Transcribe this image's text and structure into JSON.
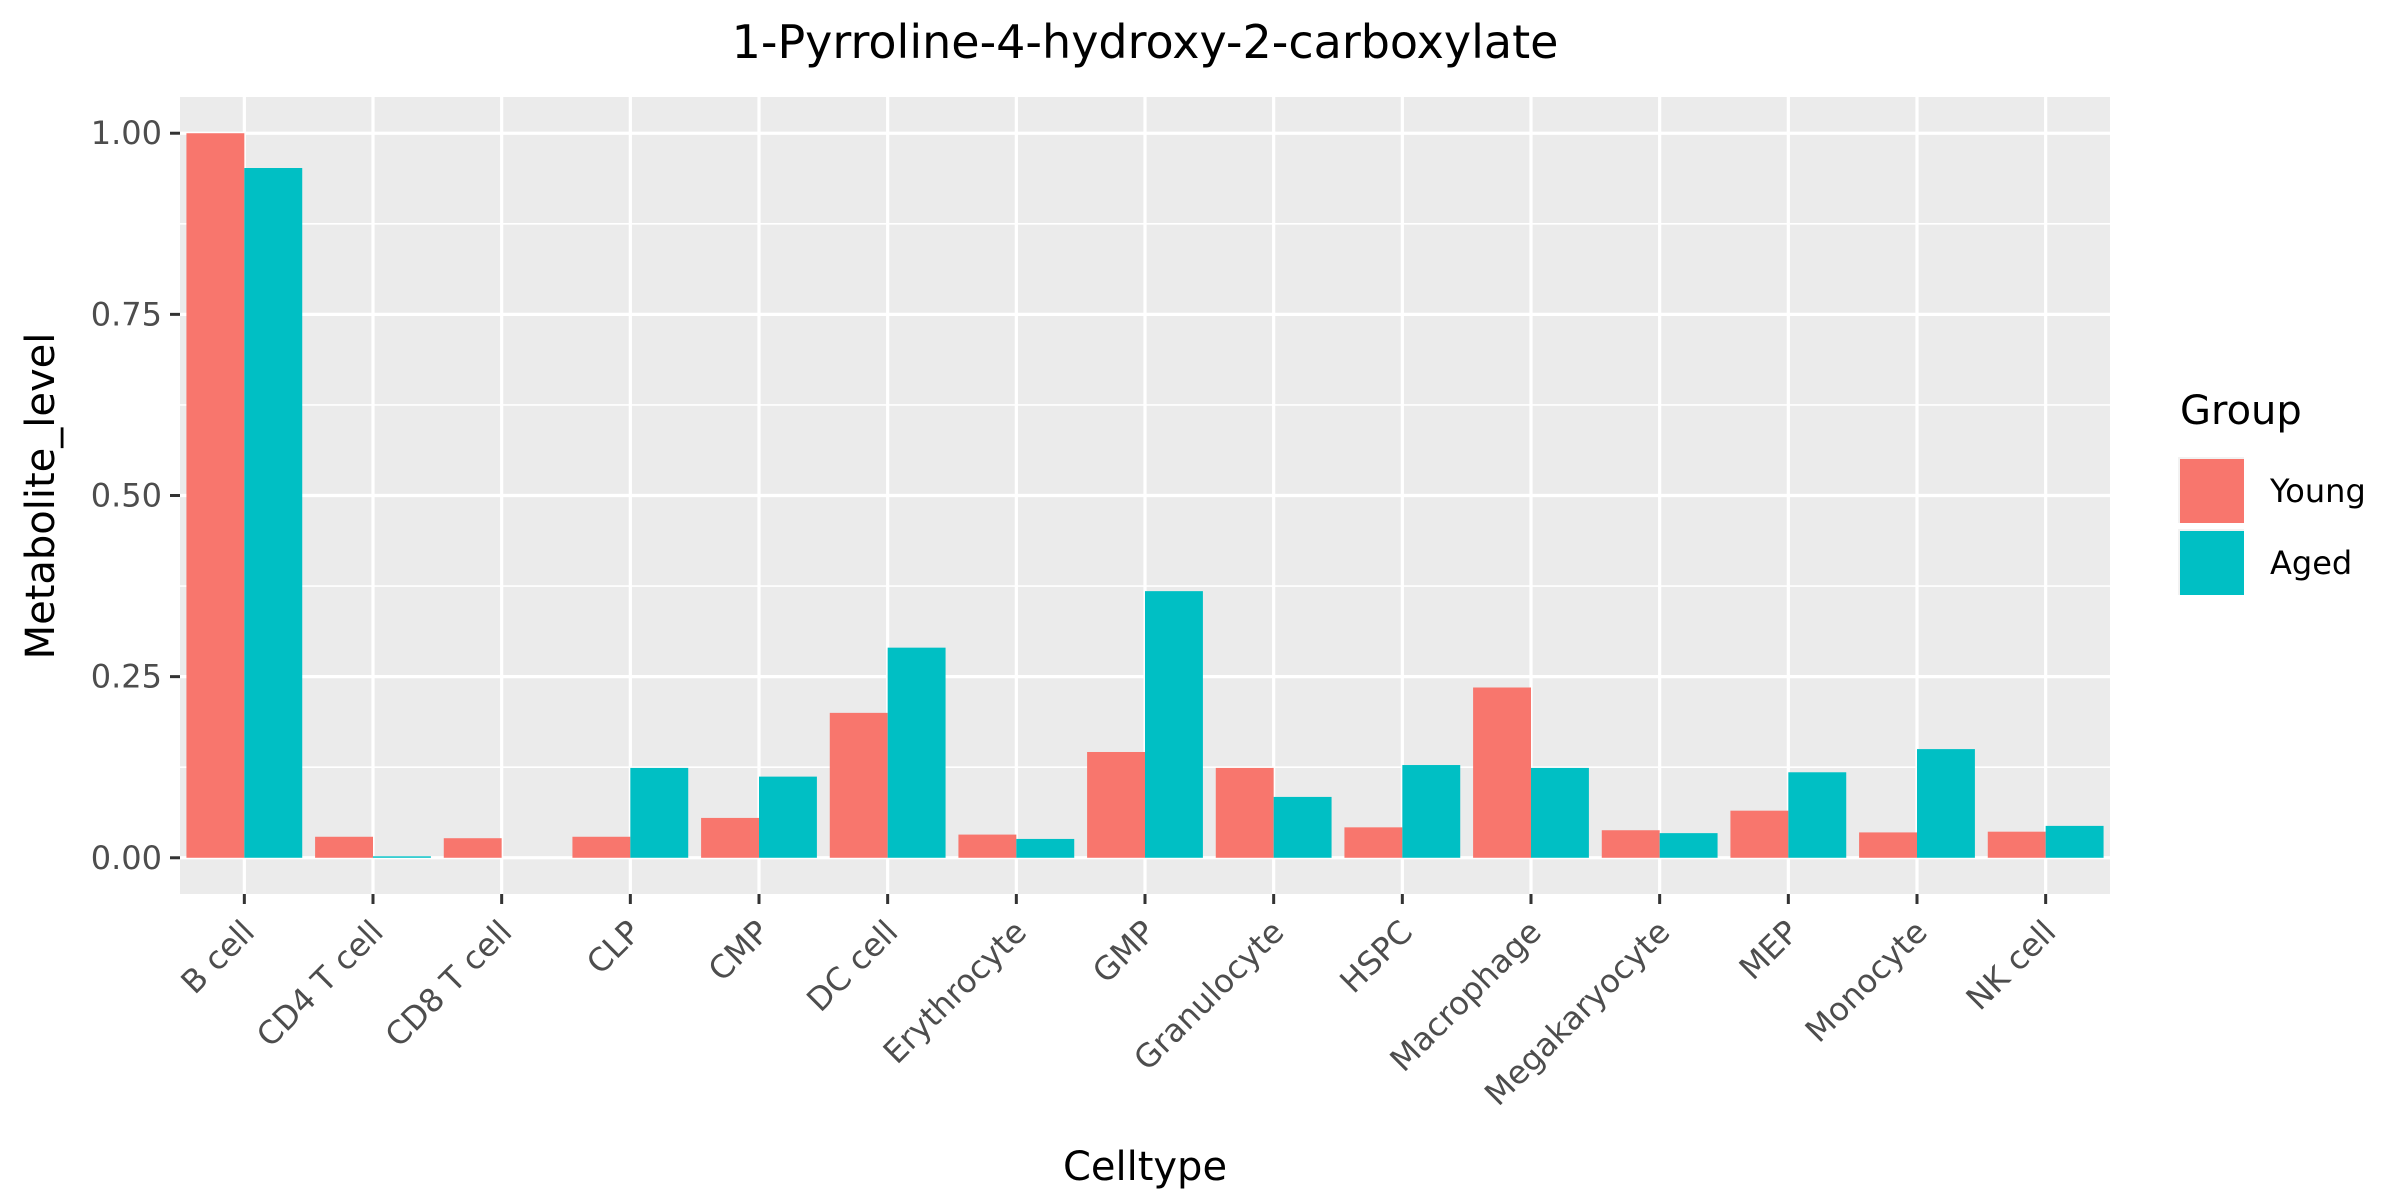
{
  "chart_data": {
    "type": "bar",
    "title": "1-Pyrroline-4-hydroxy-2-carboxylate",
    "xlabel": "Celltype",
    "ylabel": "Metabolite_level",
    "categories": [
      "B cell",
      "CD4 T cell",
      "CD8 T cell",
      "CLP",
      "CMP",
      "DC cell",
      "Erythrocyte",
      "GMP",
      "Granulocyte",
      "HSPC",
      "Macrophage",
      "Megakaryocyte",
      "MEP",
      "Monocyte",
      "NK cell"
    ],
    "series": [
      {
        "name": "Young",
        "color": "#F8766D",
        "values": [
          1.0,
          0.029,
          0.027,
          0.029,
          0.055,
          0.2,
          0.032,
          0.146,
          0.124,
          0.042,
          0.235,
          0.038,
          0.065,
          0.035,
          0.036
        ]
      },
      {
        "name": "Aged",
        "color": "#00BFC4",
        "values": [
          0.952,
          0.002,
          0.0,
          0.124,
          0.112,
          0.29,
          0.026,
          0.368,
          0.084,
          0.128,
          0.124,
          0.034,
          0.118,
          0.15,
          0.044
        ]
      }
    ],
    "ylim": [
      -0.05,
      1.05
    ],
    "yticks": [
      0.0,
      0.25,
      0.5,
      0.75,
      1.0
    ],
    "ytick_labels": [
      "0.00",
      "0.25",
      "0.50",
      "0.75",
      "1.00"
    ],
    "grid": true,
    "legend": {
      "title": "Group",
      "position": "right"
    }
  }
}
